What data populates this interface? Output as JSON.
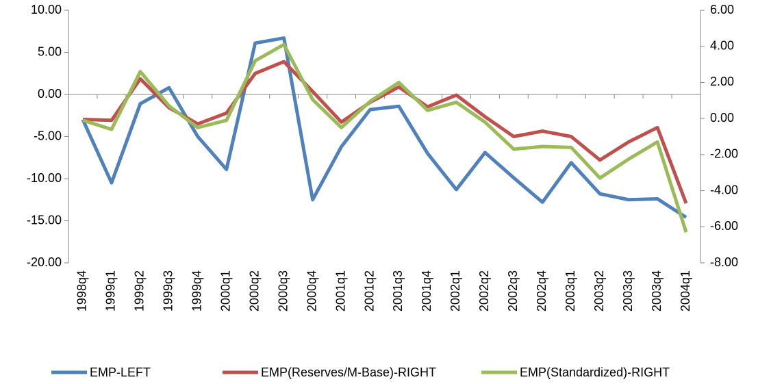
{
  "chart_data": {
    "type": "line",
    "categories": [
      "1998q4",
      "1999q1",
      "1999q2",
      "1999q3",
      "1999q4",
      "2000q1",
      "2000q2",
      "2000q3",
      "2000q4",
      "2001q1",
      "2001q2",
      "2001q3",
      "2001q4",
      "2002q1",
      "2002q2",
      "2002q3",
      "2002q4",
      "2003q1",
      "2003q2",
      "2003q3",
      "2003q4",
      "2004q1"
    ],
    "series": [
      {
        "name": "EMP-LEFT",
        "color": "#4f81bd",
        "values": [
          -3.0,
          -10.5,
          -1.1,
          0.8,
          -5.0,
          -8.9,
          6.1,
          6.7,
          -12.5,
          -6.2,
          -1.8,
          -1.4,
          -7.0,
          -11.3,
          -6.9,
          -9.9,
          -12.8,
          -8.1,
          -11.8,
          -12.5,
          -12.4,
          -14.6
        ]
      },
      {
        "name": "EMP(Reserves/M-Base)-RIGHT",
        "color": "#c0504d",
        "axis": "y2",
        "values": [
          -0.05,
          -0.1,
          2.2,
          0.6,
          -0.3,
          0.3,
          2.5,
          3.15,
          1.5,
          -0.2,
          0.9,
          1.75,
          0.65,
          1.3,
          0.1,
          -1.0,
          -0.7,
          -1.0,
          -2.3,
          -1.3,
          -0.5,
          -4.7
        ]
      },
      {
        "name": "EMP(Standardized)-RIGHT",
        "color": "#9bbb59",
        "axis": "y2",
        "values": [
          -0.1,
          -0.6,
          2.6,
          0.7,
          -0.5,
          -0.1,
          3.2,
          4.1,
          1.05,
          -0.5,
          0.95,
          2.0,
          0.45,
          0.9,
          -0.2,
          -1.7,
          -1.55,
          -1.6,
          -3.3,
          -2.25,
          -1.3,
          -6.3
        ]
      }
    ],
    "ylim": [
      -20,
      10
    ],
    "yticks": [
      {
        "value": -20,
        "label": "-20.00"
      },
      {
        "value": -15,
        "label": "-15.00"
      },
      {
        "value": -10,
        "label": "-10.00"
      },
      {
        "value": -5,
        "label": "-5.00"
      },
      {
        "value": 0,
        "label": "0.00"
      },
      {
        "value": 5,
        "label": "5.00"
      },
      {
        "value": 10,
        "label": "10.00"
      }
    ],
    "y2lim": [
      -8,
      6
    ],
    "y2ticks": [
      {
        "value": -8,
        "label": "-8.00"
      },
      {
        "value": -6,
        "label": "-6.00"
      },
      {
        "value": -4,
        "label": "-4.00"
      },
      {
        "value": -2,
        "label": "-2.00"
      },
      {
        "value": 0,
        "label": "0.00"
      },
      {
        "value": 2,
        "label": "2.00"
      },
      {
        "value": 4,
        "label": "4.00"
      },
      {
        "value": 6,
        "label": "6.00"
      }
    ],
    "legend": "bottom"
  }
}
